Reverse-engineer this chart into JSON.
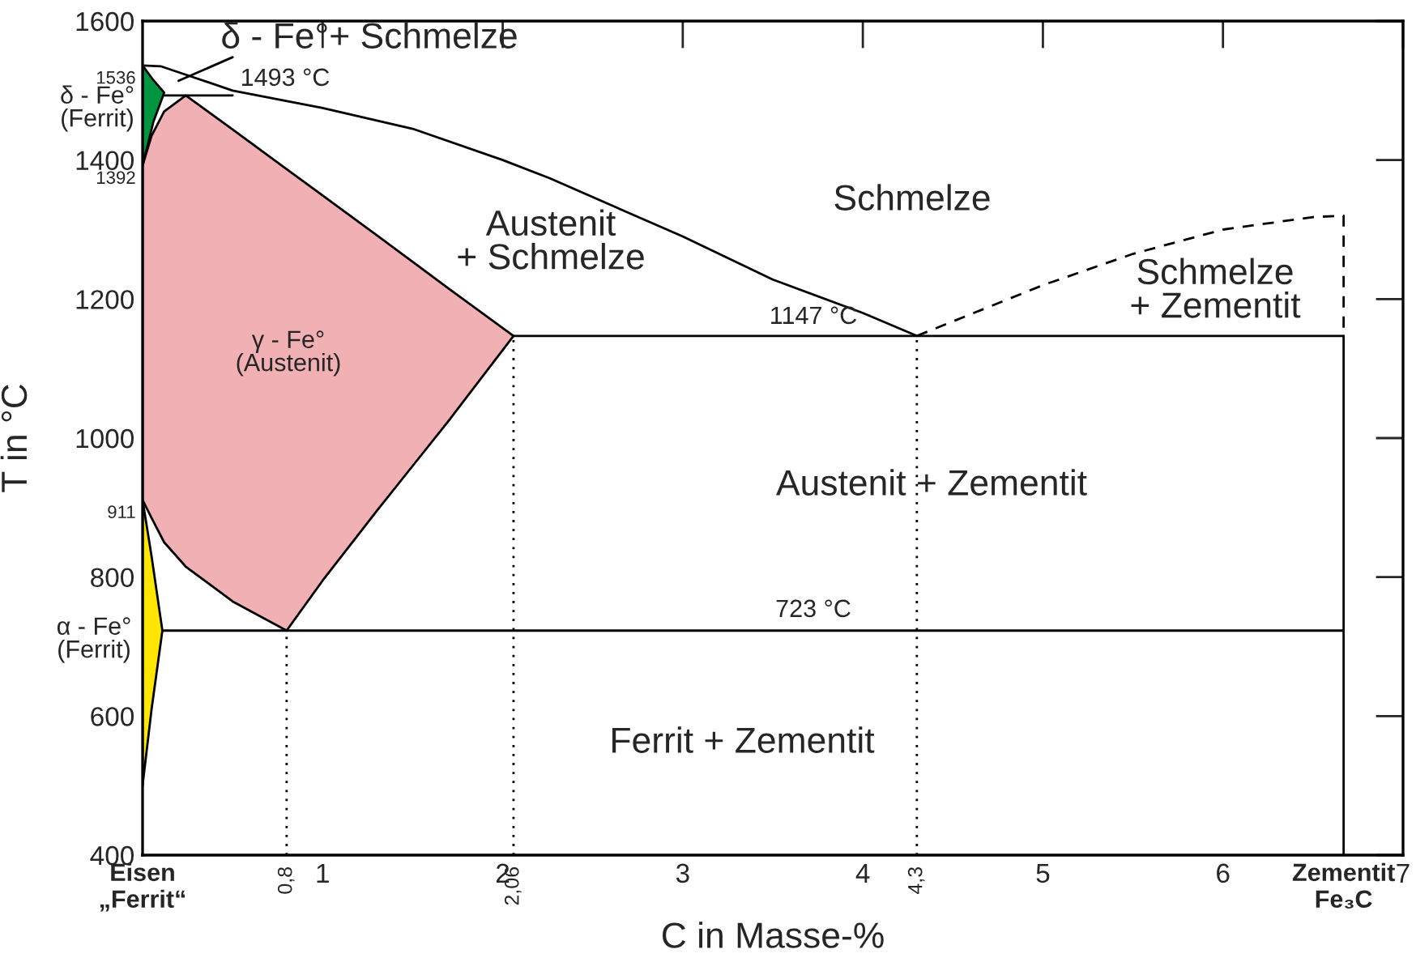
{
  "chart_data": {
    "type": "line",
    "xlabel": "C in Masse-%",
    "ylabel": "T in °C",
    "xlim": [
      0,
      7
    ],
    "ylim": [
      400,
      1600
    ],
    "xticks": [
      {
        "value": 0,
        "label": "Eisen\n„Ferrit“"
      },
      1,
      2,
      3,
      4,
      5,
      6,
      {
        "value": 6.67,
        "label": "Zementit\nFe₃C"
      },
      7
    ],
    "yticks": [
      400,
      600,
      800,
      1000,
      1200,
      1400,
      1600
    ],
    "grid": false,
    "legend": false,
    "series": [
      {
        "type": "area",
        "color": "#f0b0b4",
        "x": [
          0,
          0.05,
          0.12,
          0.24,
          0.5,
          0.8,
          1,
          1.3,
          1.7,
          2.06,
          1.7,
          1.3,
          1,
          0.8,
          0.5,
          0.24,
          0.12,
          0.05,
          0
        ],
        "values": [
          1392,
          1435,
          1470,
          1493,
          1444,
          1387,
          1349,
          1292,
          1215,
          1147,
          1025,
          895,
          795,
          723,
          765,
          815,
          850,
          885,
          911
        ]
      },
      {
        "type": "area",
        "color": "#009640",
        "x": [
          0,
          0.06,
          0.12,
          0.06,
          0
        ],
        "values": [
          1536,
          1515,
          1497,
          1455,
          1392
        ]
      },
      {
        "type": "area",
        "color": "#ffe600",
        "x": [
          0,
          0.05,
          0.11,
          0.05,
          0
        ],
        "values": [
          911,
          830,
          723,
          610,
          500
        ]
      },
      {
        "type": "line",
        "color": "#000000",
        "line_style": "solid",
        "x": [
          0,
          0.1,
          0.25,
          0.5,
          1,
          1.5,
          2,
          2.26,
          3,
          3.5,
          4,
          4.3
        ],
        "values": [
          1536,
          1535,
          1522,
          1500,
          1475,
          1445,
          1400,
          1374,
          1290,
          1228,
          1180,
          1147
        ]
      },
      {
        "type": "line",
        "color": "#000000",
        "line_style": "solid",
        "x": [
          0.12,
          0.5
        ],
        "values": [
          1493,
          1493
        ]
      },
      {
        "type": "line",
        "color": "#000000",
        "line_style": "solid",
        "x": [
          2.06,
          6.67
        ],
        "values": [
          1147,
          1147
        ]
      },
      {
        "type": "line",
        "color": "#000000",
        "line_style": "solid",
        "x": [
          0.11,
          6.67
        ],
        "values": [
          723,
          723
        ]
      },
      {
        "type": "line",
        "color": "#000000",
        "line_style": "solid",
        "x": [
          6.67,
          6.67
        ],
        "values": [
          400,
          1147
        ]
      },
      {
        "type": "line",
        "color": "#000000",
        "line_style": "dashed",
        "x": [
          4.3,
          5,
          5.5,
          6,
          6.5,
          6.67,
          6.67
        ],
        "values": [
          1147,
          1220,
          1265,
          1300,
          1318,
          1320,
          1147
        ]
      },
      {
        "type": "line",
        "color": "#000000",
        "line_style": "dotted",
        "x": [
          0.8,
          0.8
        ],
        "values": [
          400,
          723
        ]
      },
      {
        "type": "line",
        "color": "#000000",
        "line_style": "dotted",
        "x": [
          2.06,
          2.06
        ],
        "values": [
          400,
          1147
        ]
      },
      {
        "type": "line",
        "color": "#000000",
        "line_style": "dotted",
        "x": [
          4.3,
          4.3
        ],
        "values": [
          400,
          1147
        ]
      },
      {
        "type": "line",
        "color": "#000000",
        "line_style": "solid",
        "x": [
          0.2,
          0.5
        ],
        "values": [
          1514,
          1548
        ]
      }
    ],
    "annotations": [
      "δ - Fe°+ Schmelze",
      "1493 °C",
      {
        "text": "1536",
        "x": 0,
        "y": 1536
      },
      "δ - Fe°\n(Ferrit)",
      {
        "text": "1392",
        "x": 0,
        "y": 1392
      },
      {
        "text": "911",
        "x": 0,
        "y": 911
      },
      "α - Fe°\n(Ferrit)",
      "γ - Fe°\n(Austenit)",
      "Austenit\n+ Schmelze",
      "Schmelze",
      "Schmelze\n+ Zementit",
      "1147 °C",
      "Austenit + Zementit",
      "723 °C",
      "Ferrit + Zementit",
      {
        "text": "0,8",
        "x": 0.8,
        "y": 400
      },
      {
        "text": "2,06",
        "x": 2.06,
        "y": 400
      },
      {
        "text": "4,3",
        "x": 4.3,
        "y": 400
      }
    ]
  }
}
